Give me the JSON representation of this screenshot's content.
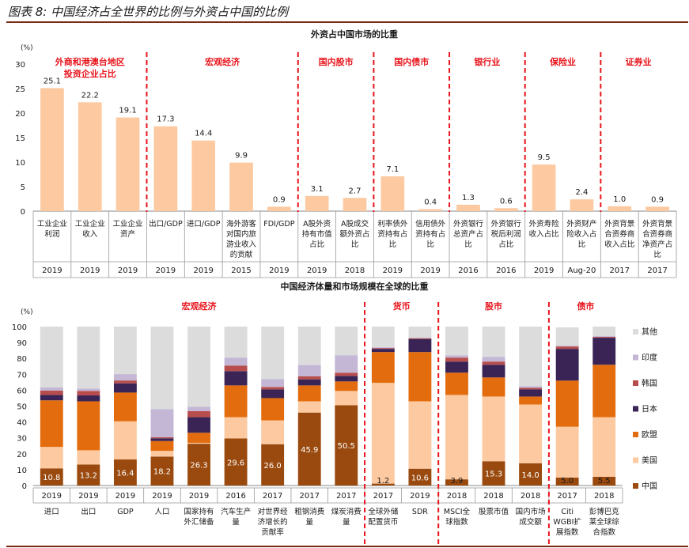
{
  "page_title": "图表 8:  中国经济占全世界的比例与外资占中国的比例",
  "colors": {
    "bar1": "#fcc9a0",
    "text": "#1a1a1a",
    "section_red": "#e8141c",
    "divider": "#e8141c",
    "rule": "#7a2a12"
  },
  "chart_data": [
    {
      "type": "bar",
      "title": "外资占中国市场的比重",
      "ylabel": "(%)",
      "ylim": [
        0,
        30
      ],
      "yticks": [
        0,
        5,
        10,
        15,
        20,
        25,
        30
      ],
      "sections": [
        {
          "label": "外商和港澳台地区投资企业占比",
          "lines": [
            "外商和港澳台地区",
            "投资企业占比"
          ],
          "start": 0,
          "end": 2
        },
        {
          "label": "宏观经济",
          "lines": [
            "宏观经济"
          ],
          "start": 3,
          "end": 6
        },
        {
          "label": "国内股市",
          "lines": [
            "国内股市"
          ],
          "start": 7,
          "end": 8
        },
        {
          "label": "国内债市",
          "lines": [
            "国内债市"
          ],
          "start": 9,
          "end": 10
        },
        {
          "label": "银行业",
          "lines": [
            "银行业"
          ],
          "start": 11,
          "end": 12
        },
        {
          "label": "保险业",
          "lines": [
            "保险业"
          ],
          "start": 13,
          "end": 14
        },
        {
          "label": "证券业",
          "lines": [
            "证券业"
          ],
          "start": 15,
          "end": 16
        }
      ],
      "categories": [
        {
          "label": [
            "工业企业",
            "利润"
          ],
          "year": "2019",
          "value": 25.1,
          "value_label": "25.1"
        },
        {
          "label": [
            "工业企业",
            "收入"
          ],
          "year": "2019",
          "value": 22.2,
          "value_label": "22.2"
        },
        {
          "label": [
            "工业企业",
            "资产"
          ],
          "year": "2019",
          "value": 19.1,
          "value_label": "19.1"
        },
        {
          "label": [
            "出口/GDP"
          ],
          "year": "2019",
          "value": 17.3,
          "value_label": "17.3"
        },
        {
          "label": [
            "进口/GDP"
          ],
          "year": "2019",
          "value": 14.4,
          "value_label": "14.4"
        },
        {
          "label": [
            "海外游客",
            "对国内旅",
            "游业收入",
            "的贡献"
          ],
          "year": "2015",
          "value": 9.9,
          "value_label": "9.9"
        },
        {
          "label": [
            "FDI/GDP"
          ],
          "year": "2019",
          "value": 0.9,
          "value_label": "0.9"
        },
        {
          "label": [
            "A股外资",
            "持有市值",
            "占比"
          ],
          "year": "2019",
          "value": 3.1,
          "value_label": "3.1"
        },
        {
          "label": [
            "A股成交",
            "额外资占",
            "比"
          ],
          "year": "2018",
          "value": 2.7,
          "value_label": "2.7"
        },
        {
          "label": [
            "利率债外",
            "资持有占",
            "比"
          ],
          "year": "2019",
          "value": 7.1,
          "value_label": "7.1"
        },
        {
          "label": [
            "信用债外",
            "资持有占",
            "比"
          ],
          "year": "2019",
          "value": 0.4,
          "value_label": "0.4"
        },
        {
          "label": [
            "外资银行",
            "总资产占",
            "比"
          ],
          "year": "2016",
          "value": 1.3,
          "value_label": "1.3"
        },
        {
          "label": [
            "外资银行",
            "税后利润",
            "占比"
          ],
          "year": "2016",
          "value": 0.6,
          "value_label": "0.6"
        },
        {
          "label": [
            "外资寿险",
            "收入占比"
          ],
          "year": "2019",
          "value": 9.5,
          "value_label": "9.5"
        },
        {
          "label": [
            "外资财产",
            "险收入占",
            "比"
          ],
          "year": "Aug-20",
          "value": 2.4,
          "value_label": "2.4"
        },
        {
          "label": [
            "外资背景",
            "合资券商",
            "收入占比"
          ],
          "year": "2017",
          "value": 1.0,
          "value_label": "1.0"
        },
        {
          "label": [
            "外资背景",
            "合资券商",
            "净资产占",
            "比"
          ],
          "year": "2017",
          "value": 0.9,
          "value_label": "0.9"
        }
      ]
    },
    {
      "type": "bar",
      "stacked": true,
      "title": "中国经济体量和市场规模在全球的比重",
      "ylabel": "(%)",
      "ylim": [
        0,
        100
      ],
      "yticks": [
        0,
        10,
        20,
        30,
        40,
        50,
        60,
        70,
        80,
        90,
        100
      ],
      "legend_position": "right",
      "series": [
        {
          "name": "中国",
          "color": "#9a4a0e",
          "values": [
            10.8,
            13.2,
            16.4,
            18.2,
            26.3,
            29.6,
            26.0,
            45.9,
            50.5,
            1.2,
            10.6,
            3.9,
            15.3,
            14.0,
            5.0,
            5.5
          ]
        },
        {
          "name": "美国",
          "color": "#fcc9a0",
          "values": [
            13.5,
            9.0,
            24.0,
            3.6,
            0.6,
            13.4,
            15.0,
            7.1,
            9.0,
            63.4,
            42.4,
            53.1,
            40.7,
            37.0,
            32.0,
            37.5
          ]
        },
        {
          "name": "欧盟",
          "color": "#e36c0e",
          "values": [
            29.3,
            30.8,
            18.1,
            6.2,
            6.3,
            20.0,
            14.0,
            10.0,
            6.0,
            19.4,
            31.0,
            14.0,
            12.0,
            5.0,
            29.0,
            33.0
          ]
        },
        {
          "name": "日本",
          "color": "#3a2455",
          "values": [
            3.4,
            3.7,
            5.8,
            1.7,
            9.8,
            9.0,
            5.5,
            3.8,
            3.5,
            2.0,
            8.2,
            7.0,
            8.0,
            4.5,
            20.0,
            17.0
          ]
        },
        {
          "name": "韩国",
          "color": "#b84d4d",
          "values": [
            2.7,
            2.8,
            1.8,
            0.7,
            3.8,
            3.5,
            1.5,
            2.0,
            2.0,
            0.5,
            0.5,
            2.5,
            2.0,
            1.0,
            1.5,
            0.5
          ]
        },
        {
          "name": "印度",
          "color": "#c3b7d5",
          "values": [
            2.0,
            1.5,
            4.0,
            17.6,
            2.8,
            5.0,
            5.0,
            7.0,
            11.0,
            0.5,
            0.3,
            1.5,
            3.0,
            1.0,
            0.5,
            0.5
          ]
        },
        {
          "name": "其他",
          "color": "#dcdcdc",
          "values": [
            38.3,
            39.0,
            29.9,
            52.0,
            50.4,
            19.5,
            33.0,
            24.2,
            18.0,
            13.0,
            7.0,
            18.0,
            19.0,
            37.5,
            11.5,
            6.0
          ]
        }
      ],
      "sections": [
        {
          "label": "宏观经济",
          "start": 0,
          "end": 8
        },
        {
          "label": "货币",
          "start": 9,
          "end": 10
        },
        {
          "label": "股市",
          "start": 11,
          "end": 13
        },
        {
          "label": "债市",
          "start": 14,
          "end": 15
        }
      ],
      "categories": [
        {
          "label": [
            "进口"
          ],
          "year": "2019",
          "value_label": "10.8"
        },
        {
          "label": [
            "出口"
          ],
          "year": "2019",
          "value_label": "13.2"
        },
        {
          "label": [
            "GDP"
          ],
          "year": "2019",
          "value_label": "16.4"
        },
        {
          "label": [
            "人口"
          ],
          "year": "2019",
          "value_label": "18.2"
        },
        {
          "label": [
            "国家持有",
            "外汇储备"
          ],
          "year": "2019",
          "value_label": "26.3"
        },
        {
          "label": [
            "汽车生产",
            "量"
          ],
          "year": "2016",
          "value_label": "29.6"
        },
        {
          "label": [
            "对世界经",
            "济增长的",
            "贡献率"
          ],
          "year": "2017",
          "value_label": "26.0"
        },
        {
          "label": [
            "粗钢消费",
            "量"
          ],
          "year": "2017",
          "value_label": "45.9"
        },
        {
          "label": [
            "煤炭消费",
            "量"
          ],
          "year": "2017",
          "value_label": "50.5"
        },
        {
          "label": [
            "全球外储",
            "配置货币"
          ],
          "year": "2017",
          "value_label": "1.2"
        },
        {
          "label": [
            "SDR"
          ],
          "year": "2019",
          "value_label": "10.6"
        },
        {
          "label": [
            "MSCI全",
            "球指数"
          ],
          "year": "2018",
          "value_label": "3.9"
        },
        {
          "label": [
            "股票市值"
          ],
          "year": "2018",
          "value_label": "15.3"
        },
        {
          "label": [
            "国内市场",
            "成交额"
          ],
          "year": "2018",
          "value_label": "14.0"
        },
        {
          "label": [
            "Citi",
            "WGBI扩",
            "展指数"
          ],
          "year": "2017",
          "value_label": "5.0"
        },
        {
          "label": [
            "彭博巴克",
            "莱全球综",
            "合指数"
          ],
          "year": "2018",
          "value_label": "5.5"
        }
      ]
    }
  ]
}
